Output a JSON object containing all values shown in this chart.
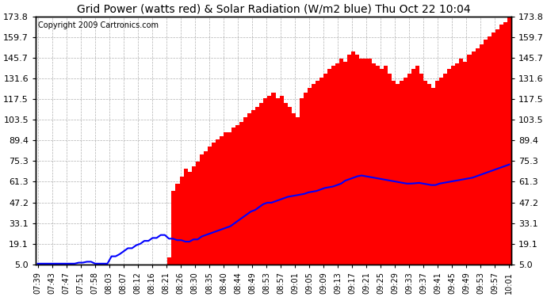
{
  "title": "Grid Power (watts red) & Solar Radiation (W/m2 blue) Thu Oct 22 10:04",
  "copyright": "Copyright 2009 Cartronics.com",
  "yticks": [
    5.0,
    19.1,
    33.1,
    47.2,
    61.3,
    75.3,
    89.4,
    103.5,
    117.5,
    131.6,
    145.7,
    159.7,
    173.8
  ],
  "ymin": 5.0,
  "ymax": 173.8,
  "bar_color": "#ff0000",
  "line_color": "#0000ff",
  "bg_color": "#ffffff",
  "grid_color": "#b0b0b0",
  "xtick_labels": [
    "07:39",
    "07:43",
    "07:47",
    "07:51",
    "07:58",
    "08:03",
    "08:07",
    "08:12",
    "08:16",
    "08:21",
    "08:26",
    "08:30",
    "08:35",
    "08:40",
    "08:44",
    "08:49",
    "08:53",
    "08:57",
    "09:01",
    "09:05",
    "09:09",
    "09:13",
    "09:17",
    "09:21",
    "09:25",
    "09:29",
    "09:33",
    "09:37",
    "09:41",
    "09:45",
    "09:49",
    "09:53",
    "09:57",
    "10:01"
  ],
  "grid_power_vals": [
    0,
    0,
    0,
    0,
    0,
    0,
    0,
    0,
    0,
    0,
    0,
    0,
    0,
    0,
    0,
    0,
    0,
    0,
    0,
    0,
    0,
    0,
    0,
    0,
    0,
    0,
    0,
    0,
    0,
    0,
    0,
    0,
    5,
    10,
    55,
    60,
    65,
    70,
    68,
    72,
    75,
    80,
    82,
    85,
    88,
    90,
    92,
    95,
    95,
    98,
    100,
    102,
    105,
    108,
    110,
    112,
    115,
    118,
    120,
    122,
    118,
    120,
    115,
    112,
    108,
    105,
    118,
    122,
    125,
    128,
    130,
    132,
    135,
    138,
    140,
    142,
    145,
    143,
    148,
    150,
    148,
    145,
    145,
    145,
    142,
    140,
    138,
    140,
    135,
    130,
    128,
    130,
    132,
    135,
    138,
    140,
    135,
    130,
    128,
    125,
    130,
    132,
    135,
    138,
    140,
    142,
    145,
    143,
    148,
    150,
    152,
    155,
    158,
    160,
    163,
    165,
    168,
    170,
    173
  ],
  "solar_line_vals": [
    5.5,
    5.5,
    5.5,
    5.5,
    5.5,
    5.5,
    5.5,
    5.5,
    5.5,
    5.5,
    6.2,
    6.2,
    6.8,
    6.8,
    5.5,
    5.5,
    5.5,
    5.5,
    10.5,
    10.5,
    12.0,
    14.0,
    16.0,
    16.0,
    18.0,
    19.0,
    21.0,
    21.0,
    23.0,
    23.0,
    25.0,
    25.0,
    22.5,
    22.5,
    21.5,
    21.5,
    20.5,
    20.5,
    22.0,
    22.0,
    24.0,
    25.0,
    26.0,
    27.0,
    28.0,
    29.0,
    30.0,
    31.0,
    33.0,
    35.0,
    37.0,
    39.0,
    41.0,
    42.0,
    44.0,
    46.0,
    47.0,
    47.0,
    48.0,
    49.0,
    50.0,
    51.0,
    51.5,
    52.0,
    52.5,
    53.0,
    54.0,
    54.5,
    55.0,
    56.0,
    57.0,
    57.5,
    58.0,
    59.0,
    60.0,
    62.0,
    63.0,
    64.0,
    65.0,
    65.5,
    65.0,
    64.5,
    64.0,
    63.5,
    63.0,
    62.5,
    62.0,
    61.5,
    61.0,
    60.5,
    60.0,
    60.0,
    60.2,
    60.5,
    60.0,
    59.5,
    59.0,
    59.0,
    60.0,
    60.5,
    61.0,
    61.5,
    62.0,
    62.5,
    63.0,
    63.5,
    64.0,
    65.0,
    66.0,
    67.0,
    68.0,
    69.0,
    70.0,
    71.0,
    72.0,
    73.0
  ],
  "n_ticks": 34,
  "title_fontsize": 10,
  "copyright_fontsize": 7,
  "ytick_fontsize": 8,
  "xtick_fontsize": 7
}
